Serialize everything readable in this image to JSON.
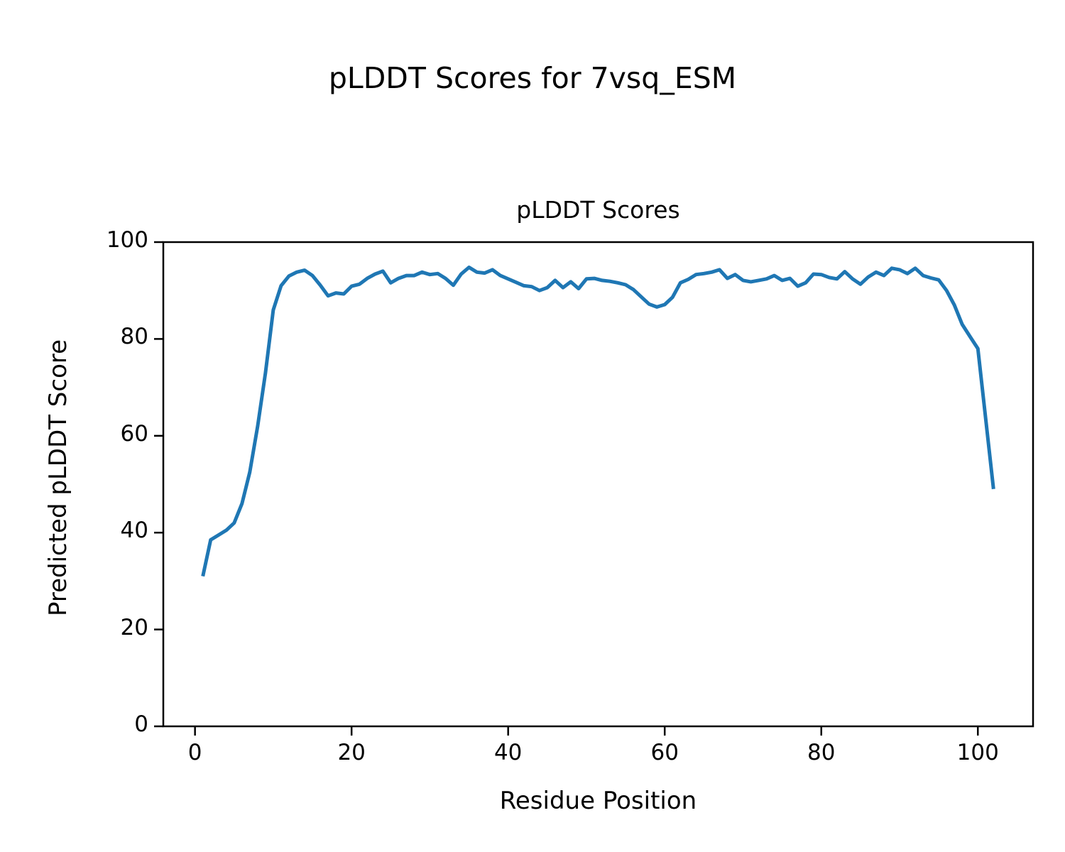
{
  "figure_title": "pLDDT Scores for 7vsq_ESM",
  "chart_data": {
    "type": "line",
    "title": "pLDDT Scores",
    "xlabel": "Residue Position",
    "ylabel": "Predicted pLDDT Score",
    "legend": "none",
    "grid": false,
    "line_color": "#1f77b4",
    "axis_color": "#000000",
    "xlim": [
      -4.05,
      107.05
    ],
    "ylim": [
      0,
      100
    ],
    "x_ticks": [
      0,
      20,
      40,
      60,
      80,
      100
    ],
    "y_ticks": [
      0,
      20,
      40,
      60,
      80,
      100
    ],
    "x_start": 1,
    "series_name": "pLDDT",
    "values": [
      31.0,
      38.5,
      39.5,
      40.5,
      42.0,
      46.0,
      52.5,
      62.0,
      73.0,
      86.0,
      91.0,
      93.0,
      93.8,
      94.2,
      93.1,
      91.1,
      88.9,
      89.5,
      89.3,
      90.9,
      91.3,
      92.5,
      93.4,
      94.0,
      91.6,
      92.5,
      93.1,
      93.1,
      93.8,
      93.3,
      93.5,
      92.5,
      91.1,
      93.4,
      94.8,
      93.8,
      93.6,
      94.3,
      93.1,
      92.4,
      91.7,
      91.0,
      90.8,
      90.0,
      90.6,
      92.1,
      90.6,
      91.8,
      90.4,
      92.4,
      92.5,
      92.1,
      91.9,
      91.6,
      91.2,
      90.2,
      88.7,
      87.2,
      86.6,
      87.1,
      88.6,
      91.6,
      92.3,
      93.3,
      93.5,
      93.8,
      94.3,
      92.5,
      93.3,
      92.1,
      91.8,
      92.1,
      92.4,
      93.1,
      92.1,
      92.5,
      90.9,
      91.6,
      93.4,
      93.3,
      92.7,
      92.4,
      93.9,
      92.4,
      91.3,
      92.8,
      93.8,
      93.1,
      94.6,
      94.3,
      93.5,
      94.6,
      93.1,
      92.6,
      92.2,
      90.0,
      87.0,
      83.0,
      80.5,
      78.0,
      63.5,
      49.0
    ]
  }
}
